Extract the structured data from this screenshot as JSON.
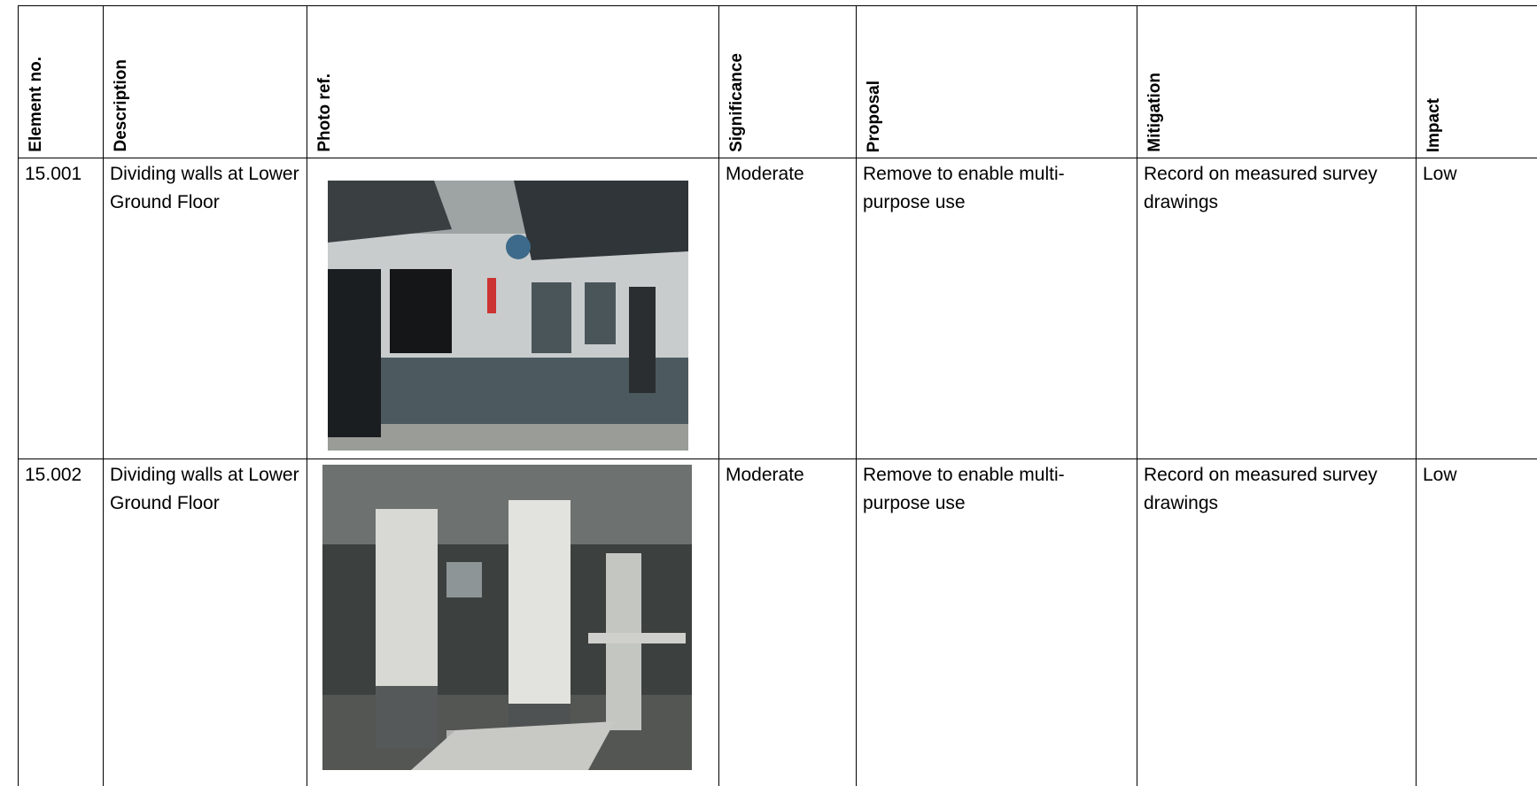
{
  "table": {
    "header": [
      "Element no.",
      "Description",
      "Photo ref.",
      "Significance",
      "Proposal",
      "Mitigation",
      "Impact"
    ],
    "rows": [
      {
        "element": "15.001",
        "description": "Dividing walls at Lower Ground Floor",
        "significance": "Moderate",
        "proposal": "Remove to enable multi-purpose use",
        "mitigation": "Record on measured survey drawings",
        "impact": "Low"
      },
      {
        "element": "15.002",
        "description": "Dividing walls at Lower Ground Floor",
        "significance": "Moderate",
        "proposal": "Remove to enable multi-purpose use",
        "mitigation": "Record on measured survey drawings",
        "impact": "Low"
      }
    ]
  }
}
